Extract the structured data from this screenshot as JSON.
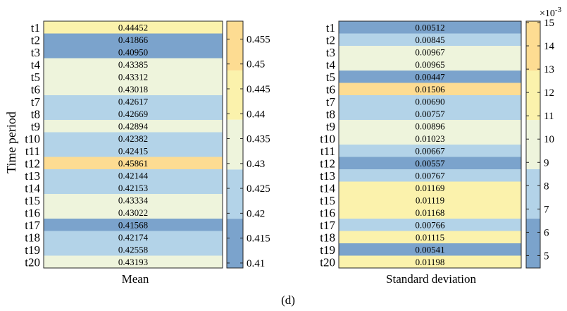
{
  "figure": {
    "panel_label": "(d)",
    "shared_ylabel": "Time period"
  },
  "palette": [
    "#7ba3cc",
    "#b3d3e8",
    "#eef4dc",
    "#fbf2ac",
    "#fddc92"
  ],
  "chart_data": [
    {
      "type": "heatmap",
      "xlabel": "Mean",
      "ylabel": "Time period",
      "categories": [
        "t1",
        "t2",
        "t3",
        "t4",
        "t5",
        "t6",
        "t7",
        "t8",
        "t9",
        "t10",
        "t11",
        "t12",
        "t13",
        "t14",
        "t15",
        "t16",
        "t17",
        "t18",
        "t19",
        "t20"
      ],
      "values": [
        0.44452,
        0.41866,
        0.4095,
        0.43385,
        0.43312,
        0.43018,
        0.42617,
        0.42669,
        0.42894,
        0.42382,
        0.42415,
        0.45861,
        0.42144,
        0.42153,
        0.43334,
        0.43022,
        0.41568,
        0.42174,
        0.42558,
        0.43193
      ],
      "labels": [
        "0.44452",
        "0.41866",
        "0.40950",
        "0.43385",
        "0.43312",
        "0.43018",
        "0.42617",
        "0.42669",
        "0.42894",
        "0.42382",
        "0.42415",
        "0.45861",
        "0.42144",
        "0.42153",
        "0.43334",
        "0.43022",
        "0.41568",
        "0.42174",
        "0.42558",
        "0.43193"
      ],
      "colorbar": {
        "range": [
          0.409,
          0.4586
        ],
        "ticks": [
          0.41,
          0.415,
          0.42,
          0.425,
          0.43,
          0.435,
          0.44,
          0.445,
          0.45,
          0.455
        ],
        "tick_labels": [
          "0.41",
          "0.415",
          "0.42",
          "0.425",
          "0.43",
          "0.435",
          "0.44",
          "0.445",
          "0.45",
          "0.455"
        ],
        "boundaries": [
          0.409,
          0.4189,
          0.4288,
          0.4388,
          0.4487,
          0.4586
        ],
        "multiplier": ""
      }
    },
    {
      "type": "heatmap",
      "xlabel": "Standard deviation",
      "ylabel": "",
      "categories": [
        "t1",
        "t2",
        "t3",
        "t4",
        "t5",
        "t6",
        "t7",
        "t8",
        "t9",
        "t10",
        "t11",
        "t12",
        "t13",
        "t14",
        "t15",
        "t16",
        "t17",
        "t18",
        "t19",
        "t20"
      ],
      "values": [
        0.00512,
        0.00845,
        0.00967,
        0.00965,
        0.00447,
        0.01506,
        0.0069,
        0.00757,
        0.00896,
        0.01023,
        0.00667,
        0.00557,
        0.00767,
        0.01169,
        0.01119,
        0.01168,
        0.00766,
        0.01115,
        0.00541,
        0.01198
      ],
      "labels": [
        "0.00512",
        "0.00845",
        "0.00967",
        "0.00965",
        "0.00447",
        "0.01506",
        "0.00690",
        "0.00757",
        "0.00896",
        "0.01023",
        "0.00667",
        "0.00557",
        "0.00767",
        "0.01169",
        "0.01119",
        "0.01168",
        "0.00766",
        "0.01115",
        "0.00541",
        "0.01198"
      ],
      "colorbar": {
        "range": [
          4.47,
          15.06
        ],
        "ticks": [
          5,
          6,
          7,
          8,
          9,
          10,
          11,
          12,
          13,
          14,
          15
        ],
        "tick_labels": [
          "5",
          "6",
          "7",
          "8",
          "9",
          "10",
          "11",
          "12",
          "13",
          "14",
          "15"
        ],
        "boundaries": [
          4.47,
          6.59,
          8.71,
          10.82,
          12.94,
          15.06
        ],
        "scale": 1000,
        "multiplier_base": "×10",
        "multiplier_exp": "-3"
      }
    }
  ]
}
